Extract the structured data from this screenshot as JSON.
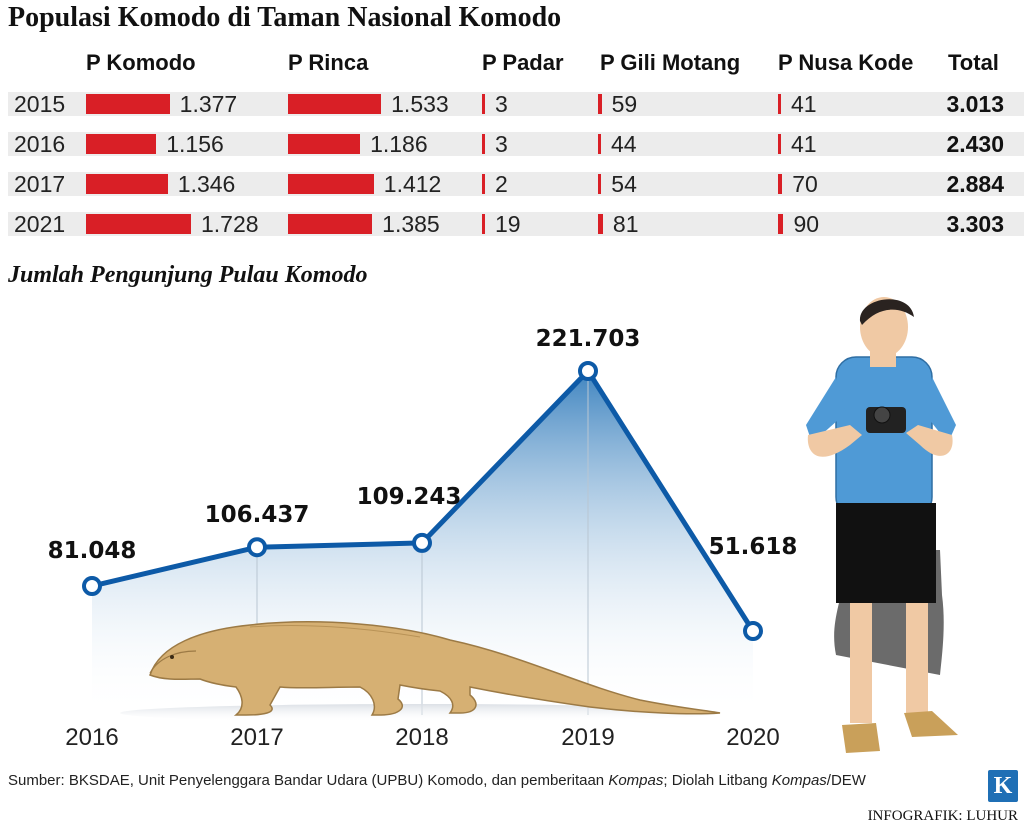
{
  "title": "Populasi Komodo di Taman Nasional Komodo",
  "columns": [
    "P Komodo",
    "P Rinca",
    "P Padar",
    "P Gili Motang",
    "P Nusa Kode",
    "Total"
  ],
  "rows": [
    {
      "year": "2015",
      "values": [
        "1.377",
        "1.533",
        "3",
        "59",
        "41"
      ],
      "total": "3.013"
    },
    {
      "year": "2016",
      "values": [
        "1.156",
        "1.186",
        "3",
        "44",
        "41"
      ],
      "total": "2.430"
    },
    {
      "year": "2017",
      "values": [
        "1.346",
        "1.412",
        "2",
        "54",
        "70"
      ],
      "total": "2.884"
    },
    {
      "year": "2021",
      "values": [
        "1.728",
        "1.385",
        "19",
        "81",
        "90"
      ],
      "total": "3.303"
    }
  ],
  "population_numeric": [
    [
      1377,
      1533,
      3,
      59,
      41
    ],
    [
      1156,
      1186,
      3,
      44,
      41
    ],
    [
      1346,
      1412,
      2,
      54,
      70
    ],
    [
      1728,
      1385,
      19,
      81,
      90
    ]
  ],
  "subtitle": "Jumlah Pengunjung Pulau Komodo",
  "chart_data": {
    "type": "line",
    "title": "Jumlah Pengunjung Pulau Komodo",
    "categories": [
      "2016",
      "2017",
      "2018",
      "2019",
      "2020"
    ],
    "values": [
      81048,
      106437,
      109243,
      221703,
      51618
    ],
    "labels": [
      "81.048",
      "106.437",
      "109.243",
      "221.703",
      "51.618"
    ],
    "ylim": [
      0,
      230000
    ],
    "grid": false,
    "line_color": "#0d5aa7"
  },
  "colors": {
    "bar": "#d91f26",
    "row_bg": "#ececec",
    "line": "#0d5aa7"
  },
  "source_prefix": "Sumber: BKSDAE, Unit Penyelenggara Bandar Udara (UPBU) Komodo, dan pemberitaan ",
  "source_italic_1": "Kompas",
  "source_mid": "; Diolah Litbang ",
  "source_italic_2": "Kompas",
  "source_suffix": "/DEW",
  "credit": "INFOGRAFIK: LUHUR",
  "logo_letter": "K"
}
